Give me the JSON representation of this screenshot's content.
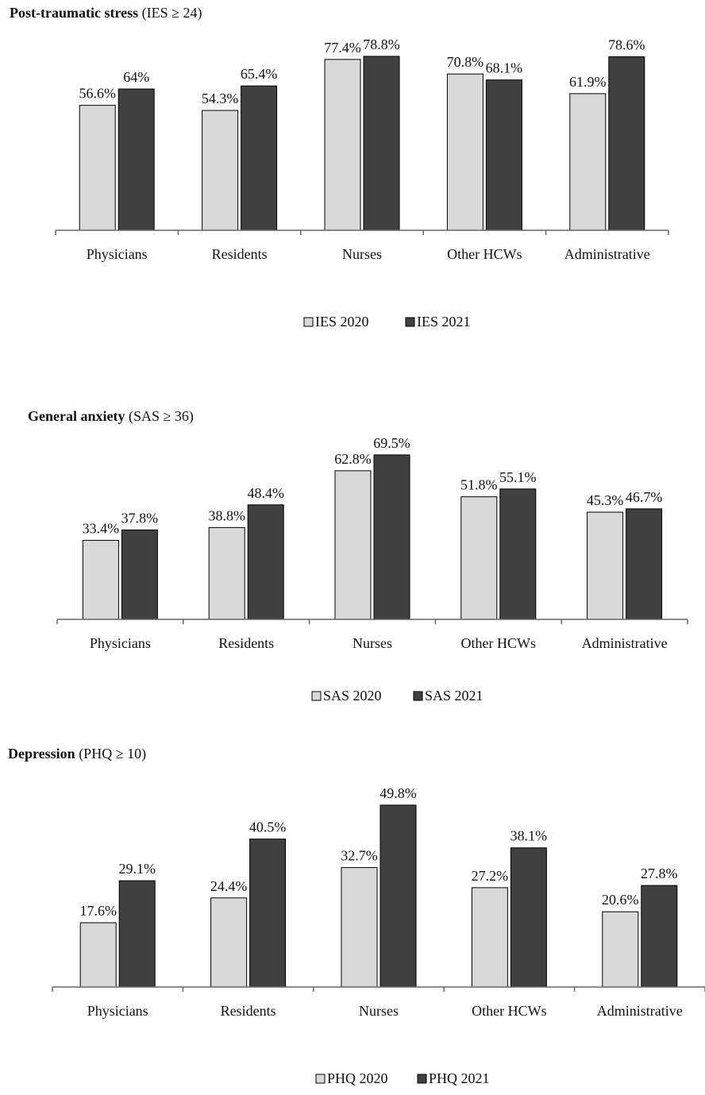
{
  "chart_data": [
    {
      "type": "bar",
      "title": "Post-traumatic stress",
      "subtitle": "(IES ≥ 24)",
      "categories": [
        "Physicians",
        "Residents",
        "Nurses",
        "Other HCWs",
        "Administrative"
      ],
      "series": [
        {
          "name": "IES 2020",
          "color": "#d9d9d9",
          "values": [
            56.6,
            54.3,
            77.4,
            70.8,
            61.9
          ],
          "value_labels": [
            "56.6%",
            "54.3%",
            "77.4%",
            "70.8%",
            "61.9%"
          ]
        },
        {
          "name": "IES 2021",
          "color": "#404040",
          "values": [
            64,
            65.4,
            78.8,
            68.1,
            78.6
          ],
          "value_labels": [
            "64%",
            "65.4%",
            "78.8%",
            "68.1%",
            "78.6%"
          ]
        }
      ]
    },
    {
      "type": "bar",
      "title": "General anxiety",
      "subtitle": "(SAS ≥ 36)",
      "categories": [
        "Physicians",
        "Residents",
        "Nurses",
        "Other HCWs",
        "Administrative"
      ],
      "series": [
        {
          "name": "SAS 2020",
          "color": "#d9d9d9",
          "values": [
            33.4,
            38.8,
            62.8,
            51.8,
            45.3
          ],
          "value_labels": [
            "33.4%",
            "38.8%",
            "62.8%",
            "51.8%",
            "45.3%"
          ]
        },
        {
          "name": "SAS 2021",
          "color": "#404040",
          "values": [
            37.8,
            48.4,
            69.5,
            55.1,
            46.7
          ],
          "value_labels": [
            "37.8%",
            "48.4%",
            "69.5%",
            "55.1%",
            "46.7%"
          ]
        }
      ]
    },
    {
      "type": "bar",
      "title": "Depression",
      "subtitle": "(PHQ ≥ 10)",
      "categories": [
        "Physicians",
        "Residents",
        "Nurses",
        "Other HCWs",
        "Administrative"
      ],
      "series": [
        {
          "name": "PHQ 2020",
          "color": "#d9d9d9",
          "values": [
            17.6,
            24.4,
            32.7,
            27.2,
            20.6
          ],
          "value_labels": [
            "17.6%",
            "24.4%",
            "32.7%",
            "27.2%",
            "20.6%"
          ]
        },
        {
          "name": "PHQ 2021",
          "color": "#404040",
          "values": [
            29.1,
            40.5,
            49.8,
            38.1,
            27.8
          ],
          "value_labels": [
            "29.1%",
            "40.5%",
            "49.8%",
            "38.1%",
            "27.8%"
          ]
        }
      ]
    }
  ]
}
